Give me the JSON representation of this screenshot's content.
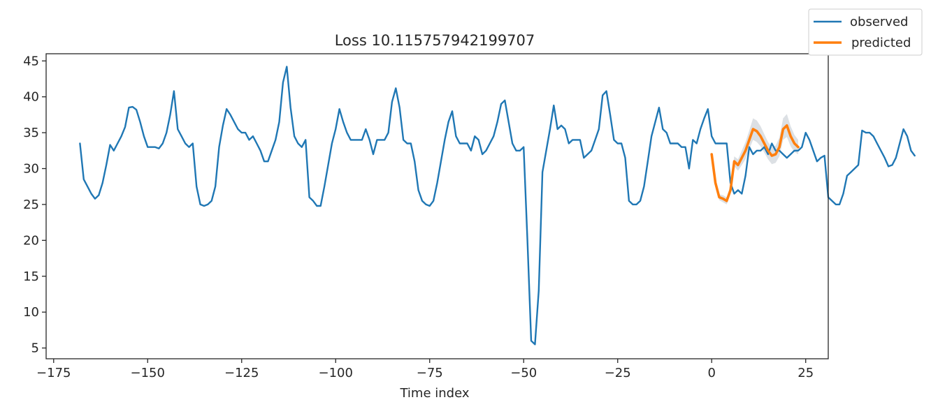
{
  "chart_data": {
    "type": "line",
    "title": "Loss 10.115757942199707",
    "xlabel": "Time index",
    "ylabel": "",
    "xlim": [
      -177,
      31
    ],
    "ylim": [
      3.5,
      46
    ],
    "x_ticks": [
      -175,
      -150,
      -125,
      -100,
      -75,
      -50,
      -25,
      0,
      25
    ],
    "x_tick_labels": [
      "−175",
      "−150",
      "−125",
      "−100",
      "−75",
      "−50",
      "−25",
      "0",
      "25"
    ],
    "y_ticks": [
      5,
      10,
      15,
      20,
      25,
      30,
      35,
      40,
      45
    ],
    "y_tick_labels": [
      "5",
      "10",
      "15",
      "20",
      "25",
      "30",
      "35",
      "40",
      "45"
    ],
    "grid": false,
    "legend_position": "top-right (outside axes)",
    "series": [
      {
        "name": "observed",
        "color": "#1f77b4",
        "x_start": -168,
        "x_step": 1,
        "values": [
          33.5,
          28.5,
          27.5,
          26.5,
          25.8,
          26.3,
          28.0,
          30.5,
          33.3,
          32.5,
          33.5,
          34.5,
          35.8,
          38.5,
          38.6,
          38.2,
          36.5,
          34.5,
          33.0,
          33.0,
          33.0,
          32.8,
          33.5,
          35.0,
          37.5,
          40.8,
          35.5,
          34.5,
          33.5,
          33.0,
          33.5,
          27.5,
          25.0,
          24.8,
          25.0,
          25.5,
          27.5,
          33.0,
          36.0,
          38.3,
          37.5,
          36.5,
          35.5,
          35.0,
          35.0,
          34.0,
          34.5,
          33.5,
          32.5,
          31.0,
          31.0,
          32.5,
          34.0,
          36.5,
          42.0,
          44.2,
          38.5,
          34.5,
          33.5,
          33.0,
          34.0,
          26.0,
          25.5,
          24.8,
          24.8,
          27.5,
          30.5,
          33.5,
          35.5,
          38.3,
          36.5,
          35.0,
          34.0,
          34.0,
          34.0,
          34.0,
          35.5,
          34.0,
          32.0,
          34.0,
          34.0,
          34.0,
          35.0,
          39.3,
          41.2,
          38.5,
          34.0,
          33.5,
          33.5,
          31.0,
          27.0,
          25.5,
          25.0,
          24.8,
          25.5,
          28.0,
          31.0,
          34.0,
          36.5,
          38.0,
          34.5,
          33.5,
          33.5,
          33.5,
          32.5,
          34.5,
          34.0,
          32.0,
          32.5,
          33.5,
          34.5,
          36.5,
          39.0,
          39.5,
          36.5,
          33.5,
          32.5,
          32.5,
          33.0,
          20.0,
          6.0,
          5.5,
          13.0,
          29.5,
          32.5,
          35.5,
          38.8,
          35.5,
          36.0,
          35.5,
          33.5,
          34.0,
          34.0,
          34.0,
          31.5,
          32.0,
          32.5,
          34.0,
          35.5,
          40.2,
          40.8,
          37.5,
          34.0,
          33.5,
          33.5,
          31.5,
          25.5,
          25.0,
          25.0,
          25.5,
          27.5,
          31.0,
          34.5,
          36.5,
          38.5,
          35.5,
          35.0,
          33.5,
          33.5,
          33.5,
          33.0,
          33.0,
          30.0,
          34.0,
          33.5,
          35.5,
          37.0,
          38.3,
          34.5,
          33.5,
          33.5,
          33.5,
          33.5,
          28.0,
          26.5,
          27.0,
          26.5,
          29.0,
          33.0,
          32.0,
          32.5,
          32.5,
          33.0,
          32.0,
          33.5,
          32.5,
          32.5,
          32.0,
          31.5,
          32.0,
          32.5,
          32.5,
          33.0,
          35.0,
          34.0,
          32.5,
          31.0,
          31.5,
          31.8,
          26.0,
          25.5,
          25.0,
          25.0,
          26.5,
          29.0,
          29.5,
          30.0,
          30.5,
          35.3,
          35.0,
          35.0,
          34.5,
          33.5,
          32.5,
          31.5,
          30.3,
          30.5,
          31.5,
          33.5,
          35.5,
          34.5,
          32.5,
          31.8
        ]
      },
      {
        "name": "predicted",
        "color": "#ff7f0e",
        "x_start": 0,
        "x_step": 1,
        "values": [
          32.0,
          28.0,
          26.0,
          25.8,
          25.5,
          27.0,
          31.0,
          30.5,
          31.5,
          32.5,
          34.0,
          35.5,
          35.2,
          34.5,
          33.5,
          32.5,
          31.8,
          32.0,
          33.0,
          35.5,
          36.0,
          34.5,
          33.5,
          33.0
        ],
        "band_halfwidth": [
          0.2,
          0.3,
          0.4,
          0.5,
          0.5,
          0.6,
          0.7,
          0.8,
          1.0,
          1.2,
          1.3,
          1.5,
          1.5,
          1.4,
          1.3,
          1.2,
          1.2,
          1.2,
          1.3,
          1.5,
          1.6,
          1.4,
          1.2,
          1.0
        ]
      }
    ]
  }
}
